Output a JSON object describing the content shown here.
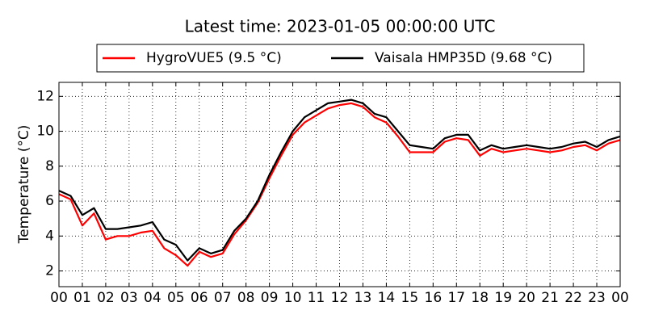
{
  "chart_data": {
    "type": "line",
    "title": "Latest time: 2023-01-05 00:00:00 UTC",
    "y_label": "Temperature (°C)",
    "x": [
      0,
      0.5,
      1,
      1.5,
      2,
      2.5,
      3,
      3.5,
      4,
      4.5,
      5,
      5.5,
      6,
      6.5,
      7,
      7.5,
      8,
      8.5,
      9,
      9.5,
      10,
      10.5,
      11,
      11.5,
      12,
      12.5,
      13,
      13.5,
      14,
      14.5,
      15,
      15.5,
      16,
      16.5,
      17,
      17.5,
      18,
      18.5,
      19,
      19.5,
      20,
      20.5,
      21,
      21.5,
      22,
      22.5,
      23,
      23.5,
      24
    ],
    "series": [
      {
        "name": "HygroVUE5 (9.5 °C)",
        "color": "#ff0000",
        "values": [
          6.4,
          6.1,
          4.6,
          5.3,
          3.8,
          4.0,
          4.0,
          4.2,
          4.3,
          3.3,
          2.9,
          2.3,
          3.1,
          2.8,
          3.0,
          4.1,
          4.9,
          5.9,
          7.3,
          8.6,
          9.8,
          10.5,
          10.9,
          11.3,
          11.5,
          11.6,
          11.4,
          10.8,
          10.5,
          9.7,
          8.8,
          8.8,
          8.8,
          9.4,
          9.6,
          9.5,
          8.6,
          9.0,
          8.8,
          8.9,
          9.0,
          8.9,
          8.8,
          8.9,
          9.1,
          9.2,
          8.9,
          9.3,
          9.5
        ]
      },
      {
        "name": "Vaisala HMP35D (9.68 °C)",
        "color": "#000000",
        "values": [
          6.6,
          6.3,
          5.2,
          5.6,
          4.4,
          4.4,
          4.5,
          4.6,
          4.8,
          3.8,
          3.5,
          2.6,
          3.3,
          3.0,
          3.2,
          4.3,
          5.0,
          6.0,
          7.5,
          8.8,
          10.0,
          10.8,
          11.2,
          11.6,
          11.7,
          11.8,
          11.6,
          11.0,
          10.8,
          10.0,
          9.2,
          9.1,
          9.0,
          9.6,
          9.8,
          9.8,
          8.9,
          9.2,
          9.0,
          9.1,
          9.2,
          9.1,
          9.0,
          9.1,
          9.3,
          9.4,
          9.1,
          9.5,
          9.7
        ]
      }
    ],
    "xlim": [
      0,
      24
    ],
    "xticks": [
      {
        "value": 0,
        "label": "00"
      },
      {
        "value": 1,
        "label": "01"
      },
      {
        "value": 2,
        "label": "02"
      },
      {
        "value": 3,
        "label": "03"
      },
      {
        "value": 4,
        "label": "04"
      },
      {
        "value": 5,
        "label": "05"
      },
      {
        "value": 6,
        "label": "06"
      },
      {
        "value": 7,
        "label": "07"
      },
      {
        "value": 8,
        "label": "08"
      },
      {
        "value": 9,
        "label": "09"
      },
      {
        "value": 10,
        "label": "10"
      },
      {
        "value": 11,
        "label": "11"
      },
      {
        "value": 12,
        "label": "12"
      },
      {
        "value": 13,
        "label": "13"
      },
      {
        "value": 14,
        "label": "14"
      },
      {
        "value": 15,
        "label": "15"
      },
      {
        "value": 16,
        "label": "16"
      },
      {
        "value": 17,
        "label": "17"
      },
      {
        "value": 18,
        "label": "18"
      },
      {
        "value": 19,
        "label": "19"
      },
      {
        "value": 20,
        "label": "20"
      },
      {
        "value": 21,
        "label": "21"
      },
      {
        "value": 22,
        "label": "22"
      },
      {
        "value": 23,
        "label": "23"
      },
      {
        "value": 24,
        "label": "00"
      }
    ],
    "ylim": [
      1.1,
      12.8
    ],
    "yticks": [
      2,
      4,
      6,
      8,
      10,
      12
    ],
    "grid": true,
    "legend": "top"
  }
}
